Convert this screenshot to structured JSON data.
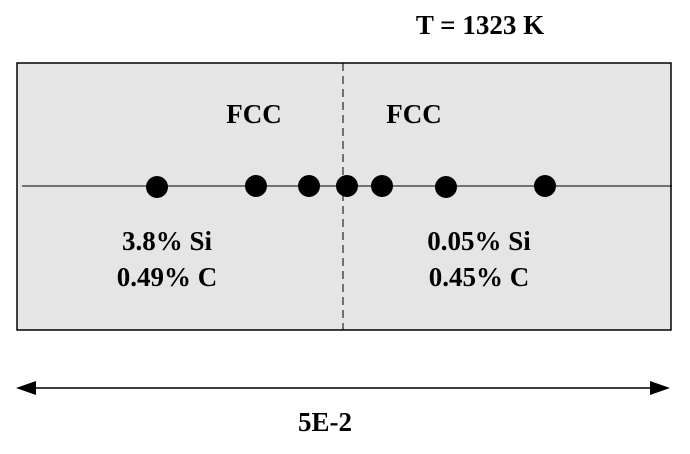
{
  "title": "T = 1323 K",
  "left": {
    "phase": "FCC",
    "composition": [
      "3.8% Si",
      "0.49% C"
    ]
  },
  "right": {
    "phase": "FCC",
    "composition": [
      "0.05% Si",
      "0.45% C"
    ]
  },
  "dimension": "5E-2"
}
